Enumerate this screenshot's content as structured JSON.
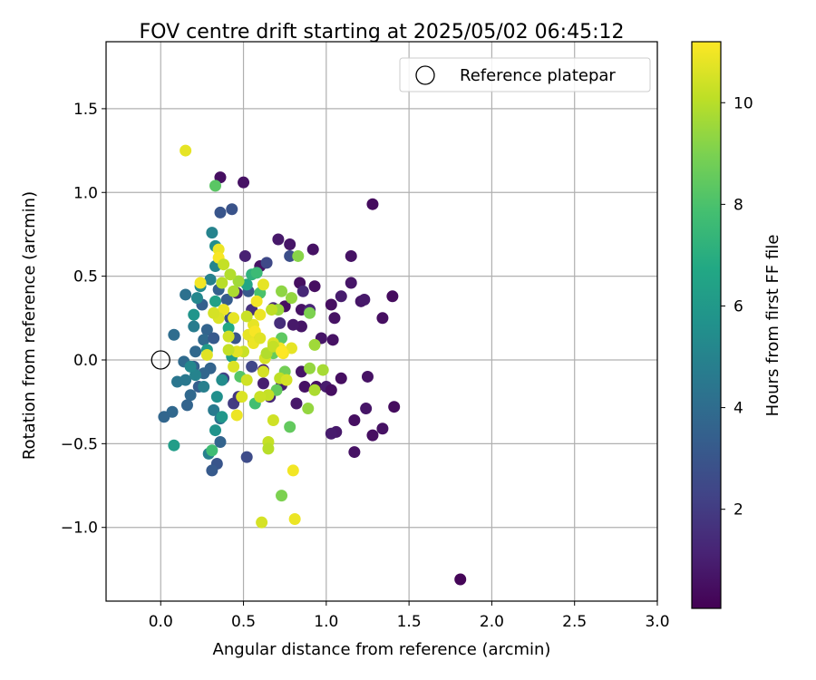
{
  "chart_data": {
    "type": "scatter",
    "title": "FOV centre drift starting at 2025/05/02 06:45:12",
    "xlabel": "Angular distance from reference (arcmin)",
    "ylabel": "Rotation from reference (arcmin)",
    "xlim": [
      -0.33,
      3.0
    ],
    "ylim": [
      -1.44,
      1.9
    ],
    "xticks": [
      "0.0",
      "0.5",
      "1.0",
      "1.5",
      "2.0",
      "2.5",
      "3.0"
    ],
    "yticks": [
      "−1.0",
      "−0.5",
      "0.0",
      "0.5",
      "1.0",
      "1.5"
    ],
    "grid": true,
    "legend": {
      "placement": "top-right",
      "label": "Reference platepar"
    },
    "reference_point": {
      "x": 0.0,
      "y": 0.0
    },
    "colorbar": {
      "label": "Hours from first FF file",
      "range": [
        0.05,
        11.2
      ],
      "ticks": [
        "2",
        "4",
        "6",
        "8",
        "10"
      ],
      "colormap": "viridis"
    },
    "points": [
      [
        1.81,
        -1.31,
        0.2
      ],
      [
        1.28,
        0.93,
        0.4
      ],
      [
        0.36,
        1.09,
        0.5
      ],
      [
        0.5,
        1.06,
        0.6
      ],
      [
        1.4,
        0.38,
        0.4
      ],
      [
        1.34,
        0.25,
        0.5
      ],
      [
        1.15,
        0.62,
        0.6
      ],
      [
        1.21,
        0.35,
        0.7
      ],
      [
        1.23,
        0.36,
        0.8
      ],
      [
        1.09,
        0.38,
        0.9
      ],
      [
        1.03,
        0.33,
        0.5
      ],
      [
        1.05,
        0.25,
        0.6
      ],
      [
        1.15,
        0.46,
        0.7
      ],
      [
        1.41,
        -0.28,
        0.4
      ],
      [
        1.34,
        -0.41,
        0.6
      ],
      [
        1.28,
        -0.45,
        0.5
      ],
      [
        1.24,
        -0.29,
        0.7
      ],
      [
        1.17,
        -0.36,
        0.5
      ],
      [
        1.17,
        -0.55,
        0.6
      ],
      [
        1.06,
        -0.43,
        0.8
      ],
      [
        1.03,
        -0.44,
        0.9
      ],
      [
        1.09,
        -0.11,
        0.5
      ],
      [
        1.25,
        -0.1,
        0.6
      ],
      [
        0.93,
        0.44,
        0.5
      ],
      [
        0.92,
        0.66,
        0.6
      ],
      [
        0.78,
        0.69,
        0.7
      ],
      [
        0.71,
        0.72,
        0.8
      ],
      [
        0.84,
        0.46,
        0.5
      ],
      [
        0.85,
        0.3,
        0.6
      ],
      [
        0.85,
        0.2,
        0.7
      ],
      [
        0.8,
        0.21,
        0.8
      ],
      [
        0.75,
        0.32,
        0.5
      ],
      [
        0.97,
        0.13,
        0.7
      ],
      [
        1.04,
        0.12,
        0.6
      ],
      [
        0.94,
        -0.16,
        0.5
      ],
      [
        0.87,
        -0.16,
        0.6
      ],
      [
        0.85,
        -0.07,
        0.7
      ],
      [
        0.82,
        -0.26,
        0.8
      ],
      [
        1.0,
        -0.16,
        0.9
      ],
      [
        1.03,
        -0.18,
        0.5
      ],
      [
        0.73,
        -0.15,
        0.9
      ],
      [
        0.62,
        -0.14,
        1.0
      ],
      [
        0.62,
        -0.06,
        1.1
      ],
      [
        0.56,
        0.11,
        1.2
      ],
      [
        0.66,
        -0.22,
        1.3
      ],
      [
        0.6,
        0.56,
        0.6
      ],
      [
        0.51,
        0.62,
        1.1
      ],
      [
        0.46,
        0.4,
        1.2
      ],
      [
        0.68,
        0.31,
        1.4
      ],
      [
        0.72,
        0.22,
        1.5
      ],
      [
        0.9,
        0.3,
        1.2
      ],
      [
        0.86,
        0.41,
        1.3
      ],
      [
        0.55,
        0.3,
        1.6
      ],
      [
        0.44,
        -0.26,
        2.0
      ],
      [
        0.52,
        -0.58,
        2.6
      ],
      [
        0.34,
        -0.62,
        3.0
      ],
      [
        0.31,
        -0.66,
        3.2
      ],
      [
        0.47,
        -0.22,
        1.8
      ],
      [
        0.38,
        -0.11,
        2.2
      ],
      [
        0.55,
        -0.04,
        2.4
      ],
      [
        0.36,
        0.88,
        3.0
      ],
      [
        0.43,
        0.9,
        2.9
      ],
      [
        0.78,
        0.62,
        2.7
      ],
      [
        0.64,
        0.58,
        2.5
      ],
      [
        0.42,
        0.25,
        2.8
      ],
      [
        0.53,
        0.41,
        3.1
      ],
      [
        0.4,
        0.36,
        3.3
      ],
      [
        0.35,
        0.42,
        3.5
      ],
      [
        0.25,
        0.33,
        3.4
      ],
      [
        0.28,
        0.18,
        3.6
      ],
      [
        0.21,
        0.05,
        3.8
      ],
      [
        0.26,
        0.12,
        3.9
      ],
      [
        0.32,
        0.13,
        3.2
      ],
      [
        0.45,
        0.13,
        3.0
      ],
      [
        0.3,
        -0.05,
        3.6
      ],
      [
        0.26,
        -0.08,
        3.7
      ],
      [
        0.23,
        -0.16,
        3.4
      ],
      [
        0.18,
        -0.21,
        3.8
      ],
      [
        0.2,
        -0.04,
        3.5
      ],
      [
        0.14,
        -0.01,
        3.9
      ],
      [
        0.07,
        -0.31,
        3.8
      ],
      [
        0.02,
        -0.34,
        3.7
      ],
      [
        0.16,
        -0.27,
        3.6
      ],
      [
        0.08,
        0.15,
        4.0
      ],
      [
        0.15,
        0.39,
        4.2
      ],
      [
        0.36,
        -0.35,
        4.3
      ],
      [
        0.32,
        -0.3,
        4.6
      ],
      [
        0.36,
        -0.49,
        3.6
      ],
      [
        0.29,
        -0.56,
        4.9
      ],
      [
        0.26,
        -0.16,
        4.8
      ],
      [
        0.1,
        -0.13,
        4.4
      ],
      [
        0.15,
        -0.12,
        4.5
      ],
      [
        0.21,
        -0.09,
        5.0
      ],
      [
        0.2,
        0.2,
        4.7
      ],
      [
        0.22,
        0.37,
        5.2
      ],
      [
        0.3,
        0.48,
        4.9
      ],
      [
        0.24,
        0.44,
        5.3
      ],
      [
        0.31,
        0.76,
        5.0
      ],
      [
        0.33,
        0.68,
        5.5
      ],
      [
        0.33,
        0.56,
        5.1
      ],
      [
        0.37,
        -0.12,
        5.4
      ],
      [
        0.33,
        -0.42,
        5.7
      ],
      [
        0.37,
        -0.34,
        5.9
      ],
      [
        0.34,
        -0.22,
        5.6
      ],
      [
        0.18,
        -0.04,
        5.2
      ],
      [
        0.08,
        -0.51,
        6.2
      ],
      [
        0.28,
        0.06,
        6.0
      ],
      [
        0.33,
        0.35,
        6.4
      ],
      [
        0.2,
        0.27,
        5.8
      ],
      [
        0.43,
        0.02,
        6.2
      ],
      [
        0.52,
        0.45,
        6.6
      ],
      [
        0.41,
        0.19,
        6.8
      ],
      [
        0.55,
        0.51,
        7.2
      ],
      [
        0.58,
        0.52,
        7.6
      ],
      [
        0.6,
        0.4,
        8.0
      ],
      [
        0.73,
        0.13,
        8.4
      ],
      [
        0.68,
        0.04,
        8.6
      ],
      [
        0.75,
        -0.07,
        8.8
      ],
      [
        0.7,
        -0.18,
        8.5
      ],
      [
        0.48,
        -0.1,
        8.2
      ],
      [
        0.57,
        -0.26,
        7.8
      ],
      [
        0.31,
        -0.54,
        7.7
      ],
      [
        0.78,
        -0.4,
        8.5
      ],
      [
        0.73,
        -0.81,
        9.0
      ],
      [
        0.33,
        1.04,
        8.3
      ],
      [
        0.83,
        0.62,
        9.2
      ],
      [
        0.73,
        0.41,
        9.3
      ],
      [
        0.71,
        0.3,
        9.5
      ],
      [
        0.79,
        0.37,
        9.4
      ],
      [
        0.9,
        0.28,
        9.0
      ],
      [
        0.93,
        0.09,
        9.6
      ],
      [
        0.98,
        -0.06,
        9.7
      ],
      [
        0.9,
        -0.05,
        9.4
      ],
      [
        0.93,
        -0.18,
        9.8
      ],
      [
        0.89,
        -0.29,
        9.4
      ],
      [
        0.65,
        -0.49,
        10.2
      ],
      [
        0.68,
        -0.36,
        10.4
      ],
      [
        0.65,
        -0.53,
        10.0
      ],
      [
        0.61,
        -0.97,
        10.5
      ],
      [
        0.72,
        -0.11,
        10.1
      ],
      [
        0.76,
        -0.12,
        10.5
      ],
      [
        0.65,
        -0.21,
        10.2
      ],
      [
        0.62,
        -0.07,
        10.5
      ],
      [
        0.52,
        -0.12,
        10.4
      ],
      [
        0.46,
        -0.33,
        10.9
      ],
      [
        0.49,
        -0.22,
        10.6
      ],
      [
        0.6,
        -0.22,
        10.3
      ],
      [
        0.5,
        0.05,
        10.3
      ],
      [
        0.46,
        0.05,
        10.7
      ],
      [
        0.41,
        0.14,
        10.4
      ],
      [
        0.38,
        0.3,
        10.9
      ],
      [
        0.35,
        0.25,
        10.6
      ],
      [
        0.44,
        0.25,
        10.8
      ],
      [
        0.56,
        0.21,
        10.8
      ],
      [
        0.52,
        0.26,
        10.3
      ],
      [
        0.6,
        0.27,
        10.9
      ],
      [
        0.58,
        0.35,
        11.0
      ],
      [
        0.62,
        0.45,
        10.8
      ],
      [
        0.67,
        0.3,
        10.1
      ],
      [
        0.79,
        0.07,
        10.8
      ],
      [
        0.81,
        -0.95,
        10.9
      ],
      [
        0.8,
        -0.66,
        11.0
      ],
      [
        0.15,
        1.25,
        10.8
      ],
      [
        0.24,
        0.46,
        11.0
      ],
      [
        0.35,
        0.66,
        10.9
      ],
      [
        0.35,
        0.61,
        11.1
      ],
      [
        0.38,
        0.57,
        10.2
      ],
      [
        0.32,
        0.28,
        10.5
      ],
      [
        0.28,
        0.03,
        10.7
      ],
      [
        0.44,
        -0.04,
        10.6
      ],
      [
        0.53,
        0.15,
        10.8
      ],
      [
        0.56,
        0.1,
        10.9
      ],
      [
        0.57,
        0.17,
        11.1
      ],
      [
        0.6,
        0.13,
        10.7
      ],
      [
        0.63,
        0.01,
        10.5
      ],
      [
        0.72,
        0.07,
        11.0
      ],
      [
        0.68,
        0.1,
        10.6
      ],
      [
        0.74,
        0.04,
        11.1
      ],
      [
        0.41,
        0.06,
        10.2
      ],
      [
        0.44,
        0.41,
        9.8
      ],
      [
        0.47,
        0.47,
        9.6
      ],
      [
        0.42,
        0.51,
        9.9
      ],
      [
        0.37,
        0.46,
        10.0
      ],
      [
        0.64,
        0.04,
        9.9
      ],
      [
        0.68,
        0.08,
        10.2
      ],
      [
        0.73,
        0.05,
        11.2
      ]
    ]
  }
}
